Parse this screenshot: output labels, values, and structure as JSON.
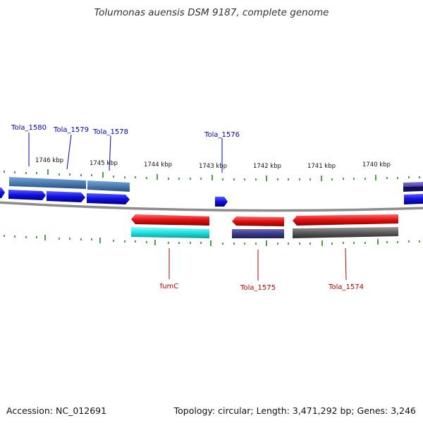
{
  "title": "Tolumonas auensis DSM 9187, complete genome",
  "footer": {
    "accession": "Accession: NC_012691",
    "summary": "Topology: circular; Length: 3,471,292 bp; Genes: 3,246"
  },
  "colors": {
    "top_label": "#0000bb",
    "bottom_label": "#bb0000",
    "tick": "#1f8a1f",
    "backbone": "#808080",
    "gene_blue": "#1010e0",
    "gene_steel": "#4a7db4",
    "gene_red": "#e01010",
    "gene_cyan": "#20e0e0",
    "gene_navy": "#3a3a88",
    "gene_gray": "#5a5a5a"
  },
  "kbp_labels": [
    "1746 kbp",
    "1745 kbp",
    "1744 kbp",
    "1743 kbp",
    "1742 kbp",
    "1741 kbp",
    "1740 kbp"
  ],
  "top_genes": [
    "Tola_1580",
    "Tola_1579",
    "Tola_1578",
    "Tola_1576"
  ],
  "bottom_genes": [
    "fumC",
    "Tola_1575",
    "Tola_1574"
  ]
}
